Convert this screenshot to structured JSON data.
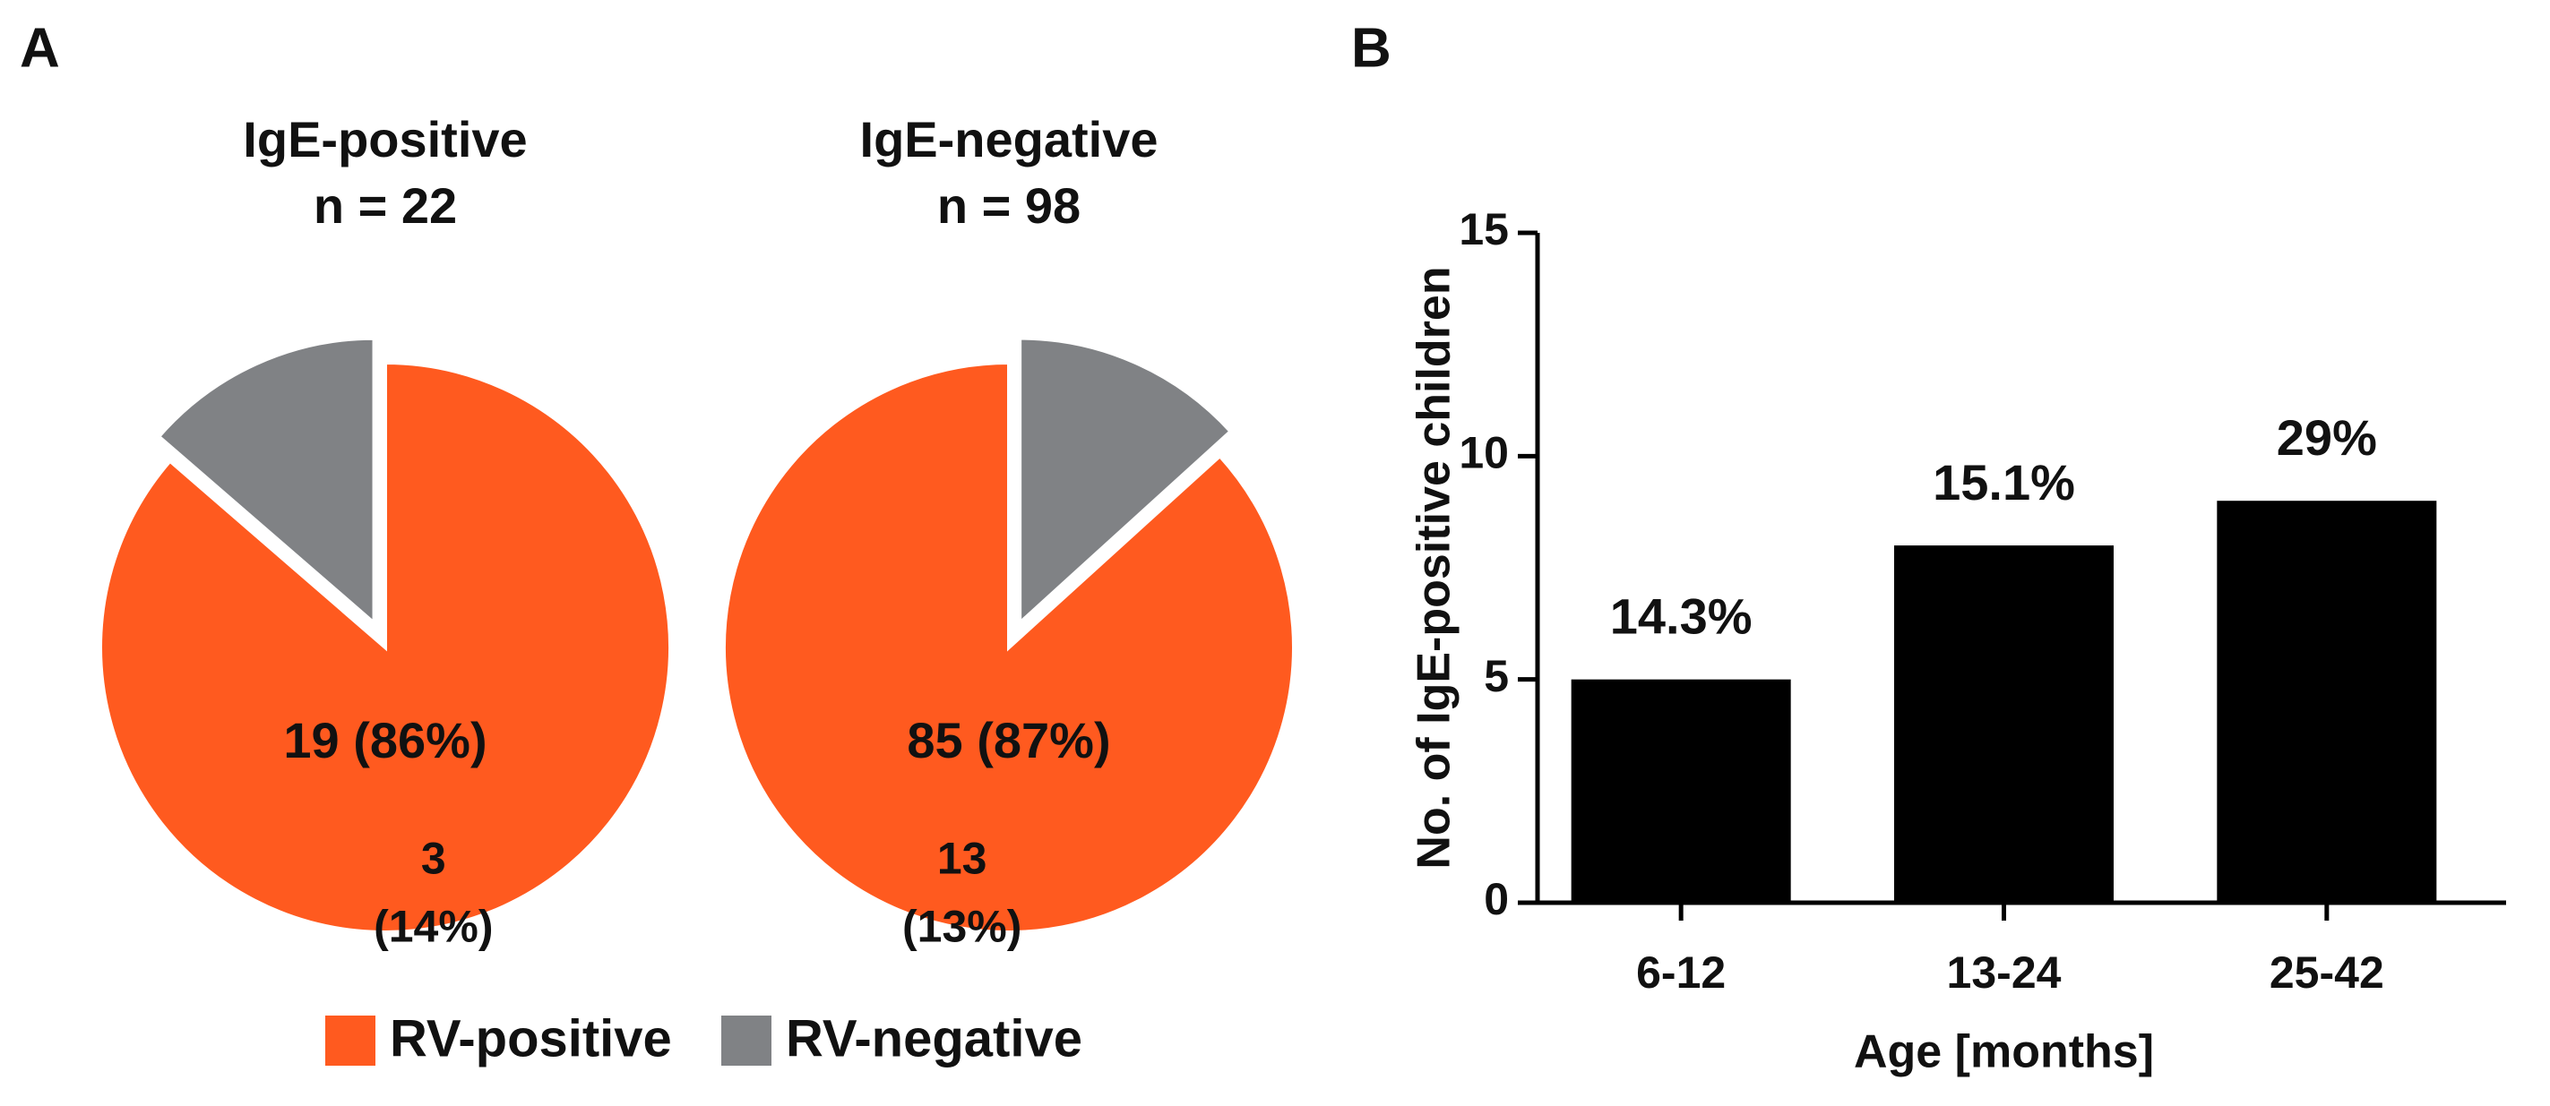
{
  "panel_labels": [
    "A",
    "B"
  ],
  "legend": {
    "labels": [
      "RV-positive",
      "RV-negative"
    ],
    "colors": [
      "#ff5a1f",
      "#808285"
    ]
  },
  "chart_data": [
    {
      "type": "pie",
      "title": "IgE-positive",
      "subtitle": "n = 22",
      "values": [
        19,
        3
      ],
      "value_labels": [
        "19 (86%)",
        [
          "3",
          "(14%)"
        ]
      ],
      "direction": "clockwise",
      "exploded": 1
    },
    {
      "type": "pie",
      "title": "IgE-negative",
      "subtitle": "n = 98",
      "values": [
        85,
        13
      ],
      "value_labels": [
        "85 (87%)",
        [
          "13",
          "(13%)"
        ]
      ],
      "direction": "counterclockwise",
      "exploded": 1
    },
    {
      "type": "bar",
      "categories": [
        "6-12",
        "13-24",
        "25-42"
      ],
      "values": [
        5,
        8,
        9
      ],
      "annotations": [
        "14.3%",
        "15.1%",
        "29%"
      ],
      "color": "#000000",
      "xlabel": "Age [months]",
      "ylabel": "No. of IgE-positive children",
      "ylim": [
        0,
        15
      ],
      "yticks": [
        0,
        5,
        10,
        15
      ]
    }
  ]
}
